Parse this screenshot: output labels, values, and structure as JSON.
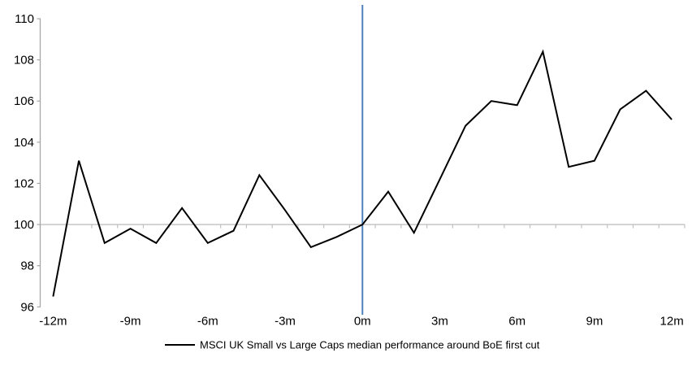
{
  "legend": {
    "label": "MSCI UK Small vs Large Caps median performance around BoE first cut"
  },
  "chart_data": {
    "type": "line",
    "title": "",
    "xlabel": "",
    "ylabel": "",
    "x_unit": "m",
    "x": [
      -12,
      -11,
      -10,
      -9,
      -8,
      -7,
      -6,
      -5,
      -4,
      -3,
      -2,
      -1,
      0,
      1,
      2,
      3,
      4,
      5,
      6,
      7,
      8,
      9,
      10,
      11,
      12
    ],
    "series": [
      {
        "name": "MSCI UK Small vs Large Caps median performance around BoE first cut",
        "color": "#000000",
        "values": [
          96.5,
          103.1,
          99.1,
          99.8,
          99.1,
          100.8,
          99.1,
          99.7,
          102.4,
          100.7,
          98.9,
          99.4,
          100.0,
          101.6,
          99.6,
          102.2,
          104.8,
          106.0,
          105.8,
          108.4,
          102.8,
          103.1,
          105.6,
          106.5,
          105.1
        ]
      }
    ],
    "ylim": [
      96,
      110
    ],
    "yticks": [
      96,
      98,
      100,
      102,
      104,
      106,
      108,
      110
    ],
    "ytick_labels": [
      "96",
      "98",
      "100",
      "102",
      "104",
      "106",
      "108",
      "110"
    ],
    "xticks": [
      -12,
      -9,
      -6,
      -3,
      0,
      3,
      6,
      9,
      12
    ],
    "xtick_labels": [
      "-12m",
      "-9m",
      "-6m",
      "-3m",
      "0m",
      "3m",
      "6m",
      "9m",
      "12m"
    ],
    "grid": "single horizontal baseline at 100, monthly tick marks on baseline",
    "baseline": {
      "value": 100,
      "color": "#c0c0c0"
    },
    "event_line": {
      "x": 0,
      "color": "#4f81bd"
    },
    "axis_color": "#a6a6a6",
    "text_color": "#000000",
    "legend_position": "bottom-center"
  }
}
